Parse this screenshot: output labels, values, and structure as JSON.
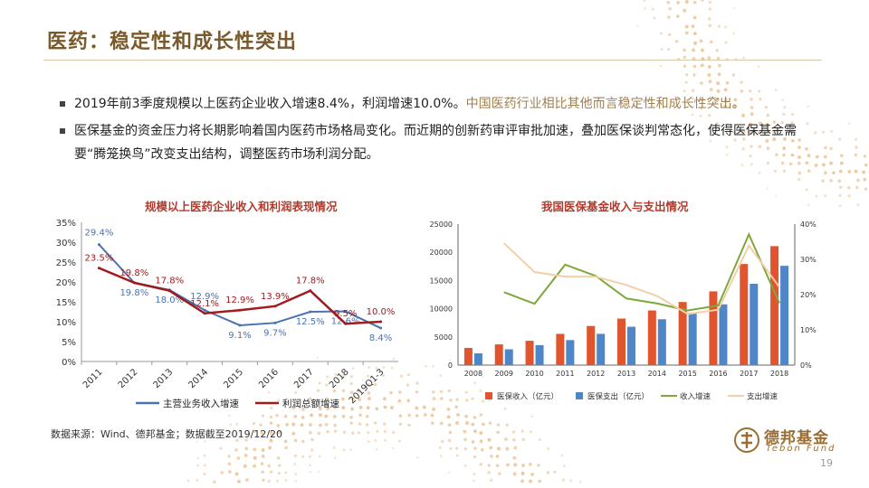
{
  "slide": {
    "title": "医药：稳定性和成长性突出",
    "bullet1_a": "2019年前3季度规模以上医药企业收入增速8.4%，利润增速10.0%。",
    "bullet1_b": "中国医药行业相比其他而言稳定性和成长性突出。",
    "bullet2": "医保基金的资金压力将长期影响着国内医药市场格局变化。而近期的创新药审评审批加速，叠加医保谈判常态化，使得医保基金需要“腾笼换鸟”改变支出结构，调整医药市场利润分配。",
    "source": "数据来源：Wind、德邦基金；数据截至2019/12/20",
    "logo_cn": "德邦基金",
    "logo_en": "Tebon Fund",
    "page_number": "19"
  },
  "colors": {
    "title": "#7a5a2c",
    "highlight": "#a07f4f",
    "chart_title": "#b23a2c",
    "revenue_line": "#4a72b0",
    "profit_line": "#a01a1e",
    "income_bar": "#e0552e",
    "expense_bar": "#4e86c8",
    "income_growth_line": "#7ea83b",
    "expense_growth_line": "#f2cfa6",
    "brand": "#9b6d33"
  },
  "chart_data": [
    {
      "type": "line",
      "title": "规模以上医药企业收入和利润表现情况",
      "categories": [
        "2011",
        "2012",
        "2013",
        "2014",
        "2015",
        "2016",
        "2017",
        "2018",
        "2019Q1-3"
      ],
      "series": [
        {
          "name": "主营业务收入增速",
          "values": [
            29.4,
            19.8,
            18.0,
            12.9,
            9.1,
            9.7,
            12.5,
            12.6,
            8.4
          ],
          "labels": [
            "29.4%",
            "19.8%",
            "18.0%",
            "12.9%",
            "9.1%",
            "9.7%",
            "12.5%",
            "12.6%",
            "8.4%"
          ]
        },
        {
          "name": "利润总额增速",
          "values": [
            23.5,
            19.8,
            17.8,
            12.1,
            12.9,
            13.9,
            17.8,
            9.5,
            10.0
          ],
          "labels": [
            "23.5%",
            "19.8%",
            "17.8%",
            "12.1%",
            "12.9%",
            "13.9%",
            "17.8%",
            "9.5%",
            "10.0%"
          ]
        }
      ],
      "ylim": [
        0,
        35
      ],
      "yticks": [
        "0%",
        "5%",
        "10%",
        "15%",
        "20%",
        "25%",
        "30%",
        "35%"
      ],
      "legend": "bottom"
    },
    {
      "type": "bar",
      "title": "我国医保基金收入与支出情况",
      "categories": [
        "2008",
        "2009",
        "2010",
        "2011",
        "2012",
        "2013",
        "2014",
        "2015",
        "2016",
        "2017",
        "2018"
      ],
      "series": [
        {
          "name": "医保收入（亿元）",
          "type": "bar",
          "axis": "left",
          "values": [
            3040,
            3670,
            4310,
            5540,
            6940,
            8250,
            9690,
            11190,
            13080,
            17930,
            21090
          ]
        },
        {
          "name": "医保支出（亿元）",
          "type": "bar",
          "axis": "left",
          "values": [
            2080,
            2800,
            3540,
            4430,
            5540,
            6800,
            8130,
            9310,
            10770,
            14420,
            17610
          ]
        },
        {
          "name": "收入增速",
          "type": "line",
          "axis": "right",
          "values": [
            null,
            20.7,
            17.4,
            28.5,
            25.3,
            18.9,
            17.5,
            15.5,
            16.9,
            37.1,
            17.6
          ]
        },
        {
          "name": "支出增速",
          "type": "line",
          "axis": "right",
          "values": [
            null,
            34.6,
            26.4,
            25.1,
            25.1,
            22.7,
            19.6,
            14.5,
            15.7,
            33.9,
            22.1
          ]
        }
      ],
      "ylim_left": [
        0,
        25000
      ],
      "yticks_left": [
        "0",
        "5000",
        "10000",
        "15000",
        "20000",
        "25000"
      ],
      "ylim_right": [
        0,
        40
      ],
      "yticks_right": [
        "0%",
        "10%",
        "20%",
        "30%",
        "40%"
      ],
      "legend": "bottom"
    }
  ]
}
